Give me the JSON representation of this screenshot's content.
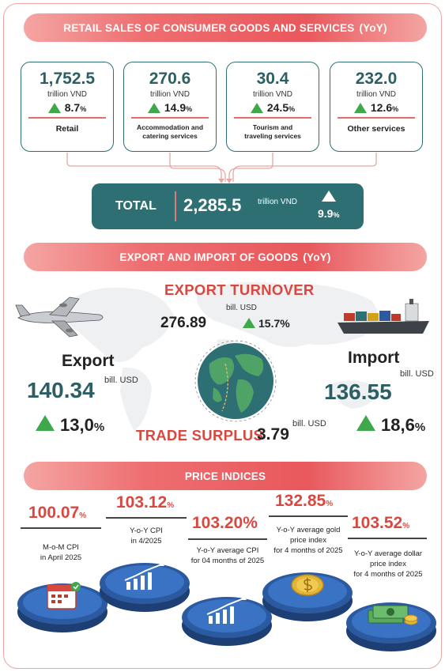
{
  "retail": {
    "banner_title": "RETAIL SALES OF CONSUMER GOODS AND SERVICES",
    "banner_tag": "(YoY)",
    "cards": [
      {
        "value": "1,752.5",
        "unit": "trillion VND",
        "pct": "8.7",
        "pct_unit": "%",
        "label": "Retail"
      },
      {
        "value": "270.6",
        "unit": "trillion VND",
        "pct": "14.9",
        "pct_unit": "%",
        "label": "Accommodation and catering services"
      },
      {
        "value": "30.4",
        "unit": "trillion VND",
        "pct": "24.5",
        "pct_unit": "%",
        "label": "Tourism and traveling services"
      },
      {
        "value": "232.0",
        "unit": "trillion VND",
        "pct": "12.6",
        "pct_unit": "%",
        "label": "Other services"
      }
    ],
    "total": {
      "label": "TOTAL",
      "value": "2,285.5",
      "unit": "trillion VND",
      "pct": "9.9",
      "pct_unit": "%"
    }
  },
  "trade": {
    "banner_title": "EXPORT AND IMPORT OF GOODS",
    "banner_tag": "(YoY)",
    "turnover_title": "EXPORT TURNOVER",
    "turnover_value": "276.89",
    "turnover_unit": "bill. USD",
    "turnover_pct": "15.7%",
    "export_label": "Export",
    "export_value": "140.34",
    "export_unit": "bill. USD",
    "export_pct": "13,0",
    "import_label": "Import",
    "import_value": "136.55",
    "import_unit": "bill. USD",
    "import_pct": "18,6",
    "pct_unit": "%",
    "surplus_label": "TRADE SURPLUS",
    "surplus_value": "3.79",
    "surplus_unit": "bill. USD"
  },
  "prices": {
    "banner_title": "PRICE INDICES",
    "items": [
      {
        "value": "100.07",
        "unit": "%",
        "label_1": "M-o-M CPI",
        "label_2": "in April 2025"
      },
      {
        "value": "103.12",
        "unit": "%",
        "label_1": "Y-o-Y CPI",
        "label_2": "in 4/2025"
      },
      {
        "value": "103.20",
        "unit": "%",
        "label_1": "Y-o-Y average CPI",
        "label_2": "for 04 months of 2025"
      },
      {
        "value": "132.85",
        "unit": "%",
        "label_1": "Y-o-Y average gold",
        "label_2": "price index",
        "label_3": "for 4 months of 2025"
      },
      {
        "value": "103.52",
        "unit": "%",
        "label_1": "Y-o-Y average dollar",
        "label_2": "price index",
        "label_3": "for 4 months of 2025"
      }
    ]
  },
  "colors": {
    "teal": "#2e6f73",
    "red": "#d9483f",
    "green": "#3ea84a",
    "banner": "#e8585c"
  }
}
